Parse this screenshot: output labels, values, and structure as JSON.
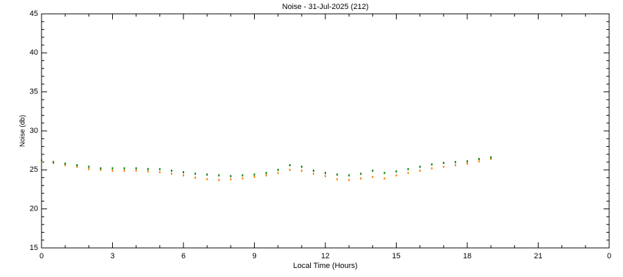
{
  "chart_data": {
    "type": "scatter",
    "title": "Noise - 31-Jul-2025 (212)",
    "x_label": "Local Time (Hours)",
    "y_label": "Noise (db)",
    "x": [
      0,
      0.5,
      1,
      1.5,
      2,
      2.5,
      3,
      3.5,
      4,
      4.5,
      5,
      5.5,
      6,
      6.5,
      7,
      7.5,
      8,
      8.5,
      9,
      9.5,
      10,
      10.5,
      11,
      11.5,
      12,
      12.5,
      13,
      13.5,
      14,
      14.5,
      15,
      15.5,
      16,
      16.5,
      17,
      17.5,
      18,
      18.5,
      19
    ],
    "series": [
      {
        "color": "#ff7f00",
        "values": [
          26.0,
          25.9,
          25.6,
          25.4,
          25.1,
          25.0,
          24.9,
          24.9,
          24.9,
          24.8,
          24.7,
          24.5,
          24.3,
          24.0,
          23.8,
          23.7,
          23.8,
          23.9,
          24.1,
          24.3,
          24.6,
          25.0,
          24.9,
          24.5,
          24.2,
          23.8,
          23.7,
          23.9,
          24.1,
          23.9,
          24.3,
          24.6,
          24.9,
          25.2,
          25.4,
          25.6,
          25.8,
          26.1,
          26.4
        ]
      },
      {
        "color": "#007f00",
        "values": [
          26.2,
          26.0,
          25.8,
          25.6,
          25.4,
          25.2,
          25.2,
          25.2,
          25.2,
          25.1,
          25.1,
          24.9,
          24.7,
          24.5,
          24.4,
          24.3,
          24.2,
          24.3,
          24.4,
          24.6,
          25.0,
          25.6,
          25.4,
          24.9,
          24.6,
          24.4,
          24.3,
          24.5,
          24.9,
          24.6,
          24.8,
          25.1,
          25.4,
          25.7,
          25.9,
          26.0,
          26.1,
          26.4,
          26.6
        ]
      }
    ],
    "xlim": [
      0,
      24
    ],
    "xticks": [
      0,
      3,
      6,
      9,
      12,
      15,
      18,
      21,
      {
        "value": 24,
        "label": "0"
      }
    ],
    "ylim": [
      15,
      45
    ],
    "yticks": [
      15,
      20,
      25,
      30,
      35,
      40,
      45
    ]
  }
}
